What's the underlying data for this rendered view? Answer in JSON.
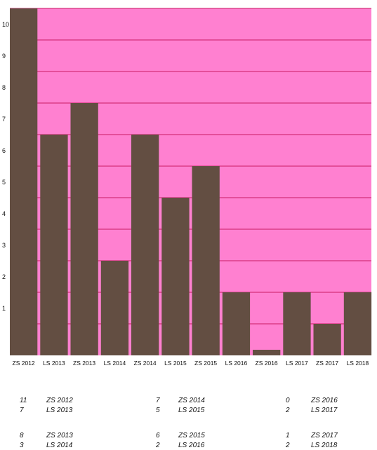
{
  "chart_data": {
    "type": "bar",
    "categories": [
      "ZS 2012",
      "LS 2013",
      "ZS 2013",
      "LS 2014",
      "ZS 2014",
      "LS 2015",
      "ZS 2015",
      "LS 2016",
      "ZS 2016",
      "LS 2017",
      "ZS 2017",
      "LS 2018"
    ],
    "values": [
      11,
      7,
      8,
      3,
      7,
      5,
      6,
      2,
      0,
      2,
      1,
      2
    ],
    "yticks": [
      1,
      2,
      3,
      4,
      5,
      6,
      7,
      8,
      9,
      10,
      11
    ],
    "ylim": [
      0,
      11
    ],
    "grid": true,
    "colors": {
      "plot_background": "#ff80d0",
      "bar": "#634e42",
      "gridline": "#d4307a"
    }
  },
  "table": [
    [
      {
        "value": "11",
        "label": "ZS 2012"
      },
      {
        "value": "7",
        "label": "LS 2013"
      }
    ],
    [
      {
        "value": "8",
        "label": "ZS 2013"
      },
      {
        "value": "3",
        "label": "LS 2014"
      }
    ],
    [
      {
        "value": "7",
        "label": "ZS 2014"
      },
      {
        "value": "5",
        "label": "LS 2015"
      }
    ],
    [
      {
        "value": "6",
        "label": "ZS 2015"
      },
      {
        "value": "2",
        "label": "LS 2016"
      }
    ],
    [
      {
        "value": "0",
        "label": "ZS 2016"
      },
      {
        "value": "2",
        "label": "LS 2017"
      }
    ],
    [
      {
        "value": "1",
        "label": "ZS 2017"
      },
      {
        "value": "2",
        "label": "LS 2018"
      }
    ]
  ]
}
